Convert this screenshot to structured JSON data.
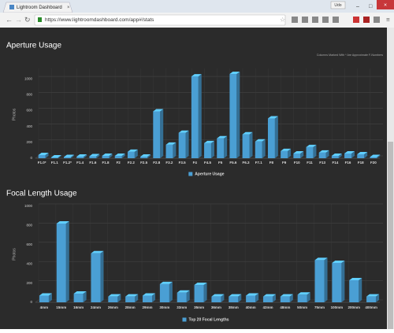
{
  "browser": {
    "tab_title": "Lightroom Dashboard",
    "url": "https://www.lightroomdashboard.com/app#/stats",
    "user": "Udo"
  },
  "chart_data": [
    {
      "type": "bar3d",
      "title": "Aperture Usage",
      "note": "Columns Marked With * Are Approximate F-Numbers",
      "y_label": "Photos",
      "categories": [
        "F1.0*",
        "F1.1",
        "F1.2*",
        "F1.4",
        "F1.6",
        "F1.8",
        "F2",
        "F2.2",
        "F2.5",
        "F2.8",
        "F3.2",
        "F3.5",
        "F4",
        "F4.5",
        "F5",
        "F5.6",
        "F6.3",
        "F7.1",
        "F8",
        "F9",
        "F10",
        "F11",
        "F13",
        "F14",
        "F16",
        "F18",
        "F20"
      ],
      "series": [
        {
          "name": "Aperture Usage",
          "color": "#4a9fd4",
          "values": [
            40,
            10,
            15,
            20,
            25,
            30,
            30,
            80,
            20,
            590,
            170,
            320,
            1030,
            190,
            250,
            1060,
            300,
            210,
            500,
            90,
            60,
            140,
            70,
            30,
            60,
            50,
            15
          ]
        }
      ],
      "ylim": [
        0,
        1100
      ],
      "yticks": [
        0,
        200,
        400,
        600,
        800,
        1000
      ],
      "grid": true
    },
    {
      "type": "bar3d",
      "title": "Focal Length Usage",
      "y_label": "Photos",
      "categories": [
        "4mm",
        "15mm",
        "16mm",
        "24mm",
        "26mm",
        "28mm",
        "29mm",
        "30mm",
        "33mm",
        "35mm",
        "36mm",
        "38mm",
        "40mm",
        "42mm",
        "48mm",
        "50mm",
        "75mm",
        "100mm",
        "200mm",
        "400mm"
      ],
      "series": [
        {
          "name": "Top 20 Focal Lengths",
          "color": "#4a9fd4",
          "values": [
            70,
            820,
            90,
            510,
            60,
            60,
            70,
            190,
            100,
            180,
            60,
            60,
            70,
            60,
            60,
            80,
            440,
            410,
            230,
            60
          ]
        }
      ],
      "ylim": [
        0,
        1000
      ],
      "yticks": [
        0,
        200,
        400,
        600,
        800,
        1000
      ],
      "grid": true
    }
  ]
}
